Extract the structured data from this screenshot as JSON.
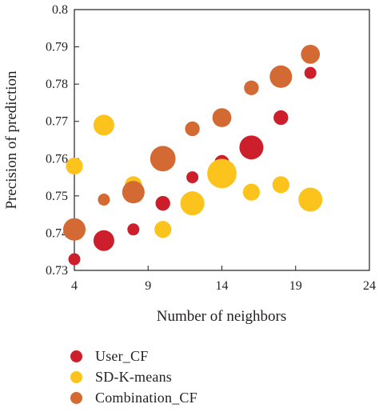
{
  "chart_data": {
    "type": "scatter",
    "title": "",
    "xlabel": "Number of neighbors",
    "ylabel": "Precision of prediction",
    "xlim": [
      4,
      24
    ],
    "ylim": [
      0.73,
      0.8
    ],
    "xticks": [
      "4",
      "9",
      "14",
      "19",
      "24"
    ],
    "yticks": [
      "0.73",
      "0.74",
      "0.75",
      "0.76",
      "0.77",
      "0.78",
      "0.79",
      "0.8"
    ],
    "grid": false,
    "legend_position": "bottom",
    "bubble": true,
    "series": [
      {
        "name": "User_CF",
        "color": "#cc1f2b",
        "points": [
          {
            "x": 4,
            "y": 0.733,
            "size": 1
          },
          {
            "x": 6,
            "y": 0.738,
            "size": 3
          },
          {
            "x": 8,
            "y": 0.741,
            "size": 1
          },
          {
            "x": 10,
            "y": 0.748,
            "size": 1.5
          },
          {
            "x": 12,
            "y": 0.755,
            "size": 1
          },
          {
            "x": 14,
            "y": 0.759,
            "size": 1.5
          },
          {
            "x": 16,
            "y": 0.763,
            "size": 4
          },
          {
            "x": 18,
            "y": 0.771,
            "size": 1.5
          },
          {
            "x": 20,
            "y": 0.783,
            "size": 1
          }
        ]
      },
      {
        "name": "SD-K-means",
        "color": "#fcc31c",
        "points": [
          {
            "x": 4,
            "y": 0.758,
            "size": 2
          },
          {
            "x": 6,
            "y": 0.769,
            "size": 3
          },
          {
            "x": 8,
            "y": 0.753,
            "size": 2
          },
          {
            "x": 10,
            "y": 0.741,
            "size": 2
          },
          {
            "x": 12,
            "y": 0.748,
            "size": 4
          },
          {
            "x": 14,
            "y": 0.756,
            "size": 6
          },
          {
            "x": 16,
            "y": 0.751,
            "size": 2
          },
          {
            "x": 18,
            "y": 0.753,
            "size": 2
          },
          {
            "x": 20,
            "y": 0.749,
            "size": 4
          }
        ]
      },
      {
        "name": "Combination_CF",
        "color": "#d46a33",
        "points": [
          {
            "x": 4,
            "y": 0.741,
            "size": 3.5
          },
          {
            "x": 6,
            "y": 0.749,
            "size": 1
          },
          {
            "x": 8,
            "y": 0.751,
            "size": 3.5
          },
          {
            "x": 10,
            "y": 0.76,
            "size": 4.5
          },
          {
            "x": 12,
            "y": 0.768,
            "size": 1.5
          },
          {
            "x": 14,
            "y": 0.771,
            "size": 2.5
          },
          {
            "x": 16,
            "y": 0.779,
            "size": 1.5
          },
          {
            "x": 18,
            "y": 0.782,
            "size": 3.5
          },
          {
            "x": 20,
            "y": 0.788,
            "size": 2.5
          }
        ]
      }
    ]
  }
}
